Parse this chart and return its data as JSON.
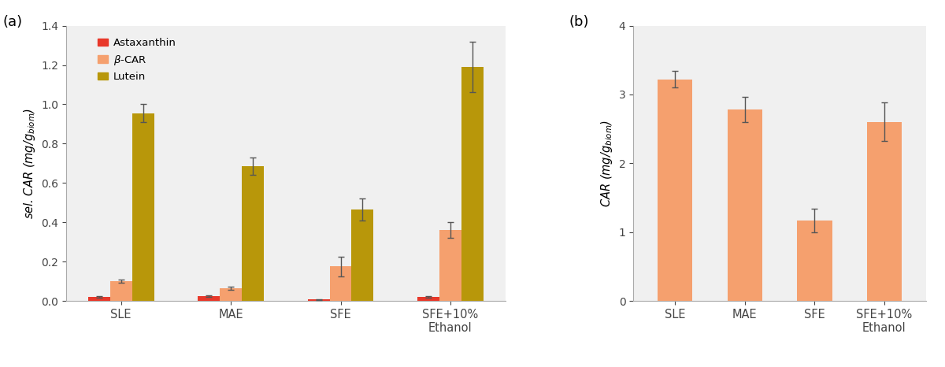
{
  "panel_a": {
    "categories": [
      "SLE",
      "MAE",
      "SFE",
      "SFE+10%\nEthanol"
    ],
    "astaxanthin": [
      0.022,
      0.025,
      0.008,
      0.022
    ],
    "astaxanthin_err": [
      0.004,
      0.004,
      0.002,
      0.004
    ],
    "beta_car": [
      0.1,
      0.065,
      0.175,
      0.36
    ],
    "beta_car_err": [
      0.008,
      0.008,
      0.05,
      0.04
    ],
    "lutein": [
      0.955,
      0.685,
      0.465,
      1.19
    ],
    "lutein_err": [
      0.045,
      0.045,
      0.055,
      0.13
    ],
    "ylabel": "sel. CAR (mg/g$_\\mathregular{biom}$)",
    "ylim": [
      0,
      1.4
    ],
    "yticks": [
      0.0,
      0.2,
      0.4,
      0.6,
      0.8,
      1.0,
      1.2,
      1.4
    ],
    "color_astaxanthin": "#e8382a",
    "color_beta_car": "#f5a06e",
    "color_lutein": "#b8970a",
    "label_astaxanthin": "Astaxanthin",
    "label_beta_car": "β-CAR",
    "label_lutein": "Lutein"
  },
  "panel_b": {
    "categories": [
      "SLE",
      "MAE",
      "SFE",
      "SFE+10%\nEthanol"
    ],
    "values": [
      3.22,
      2.78,
      1.17,
      2.6
    ],
    "errors": [
      0.12,
      0.18,
      0.17,
      0.28
    ],
    "ylabel": "CAR (mg/g$_\\mathregular{biom}$)",
    "ylim": [
      0,
      4
    ],
    "yticks": [
      0,
      1,
      2,
      3,
      4
    ],
    "color": "#f5a06e"
  },
  "panel_a_label": "(a)",
  "panel_b_label": "(b)",
  "bar_width": 0.2,
  "ecolor": "#555555",
  "capsize": 3,
  "plot_bg": "#f0f0f0",
  "background_color": "#ffffff"
}
